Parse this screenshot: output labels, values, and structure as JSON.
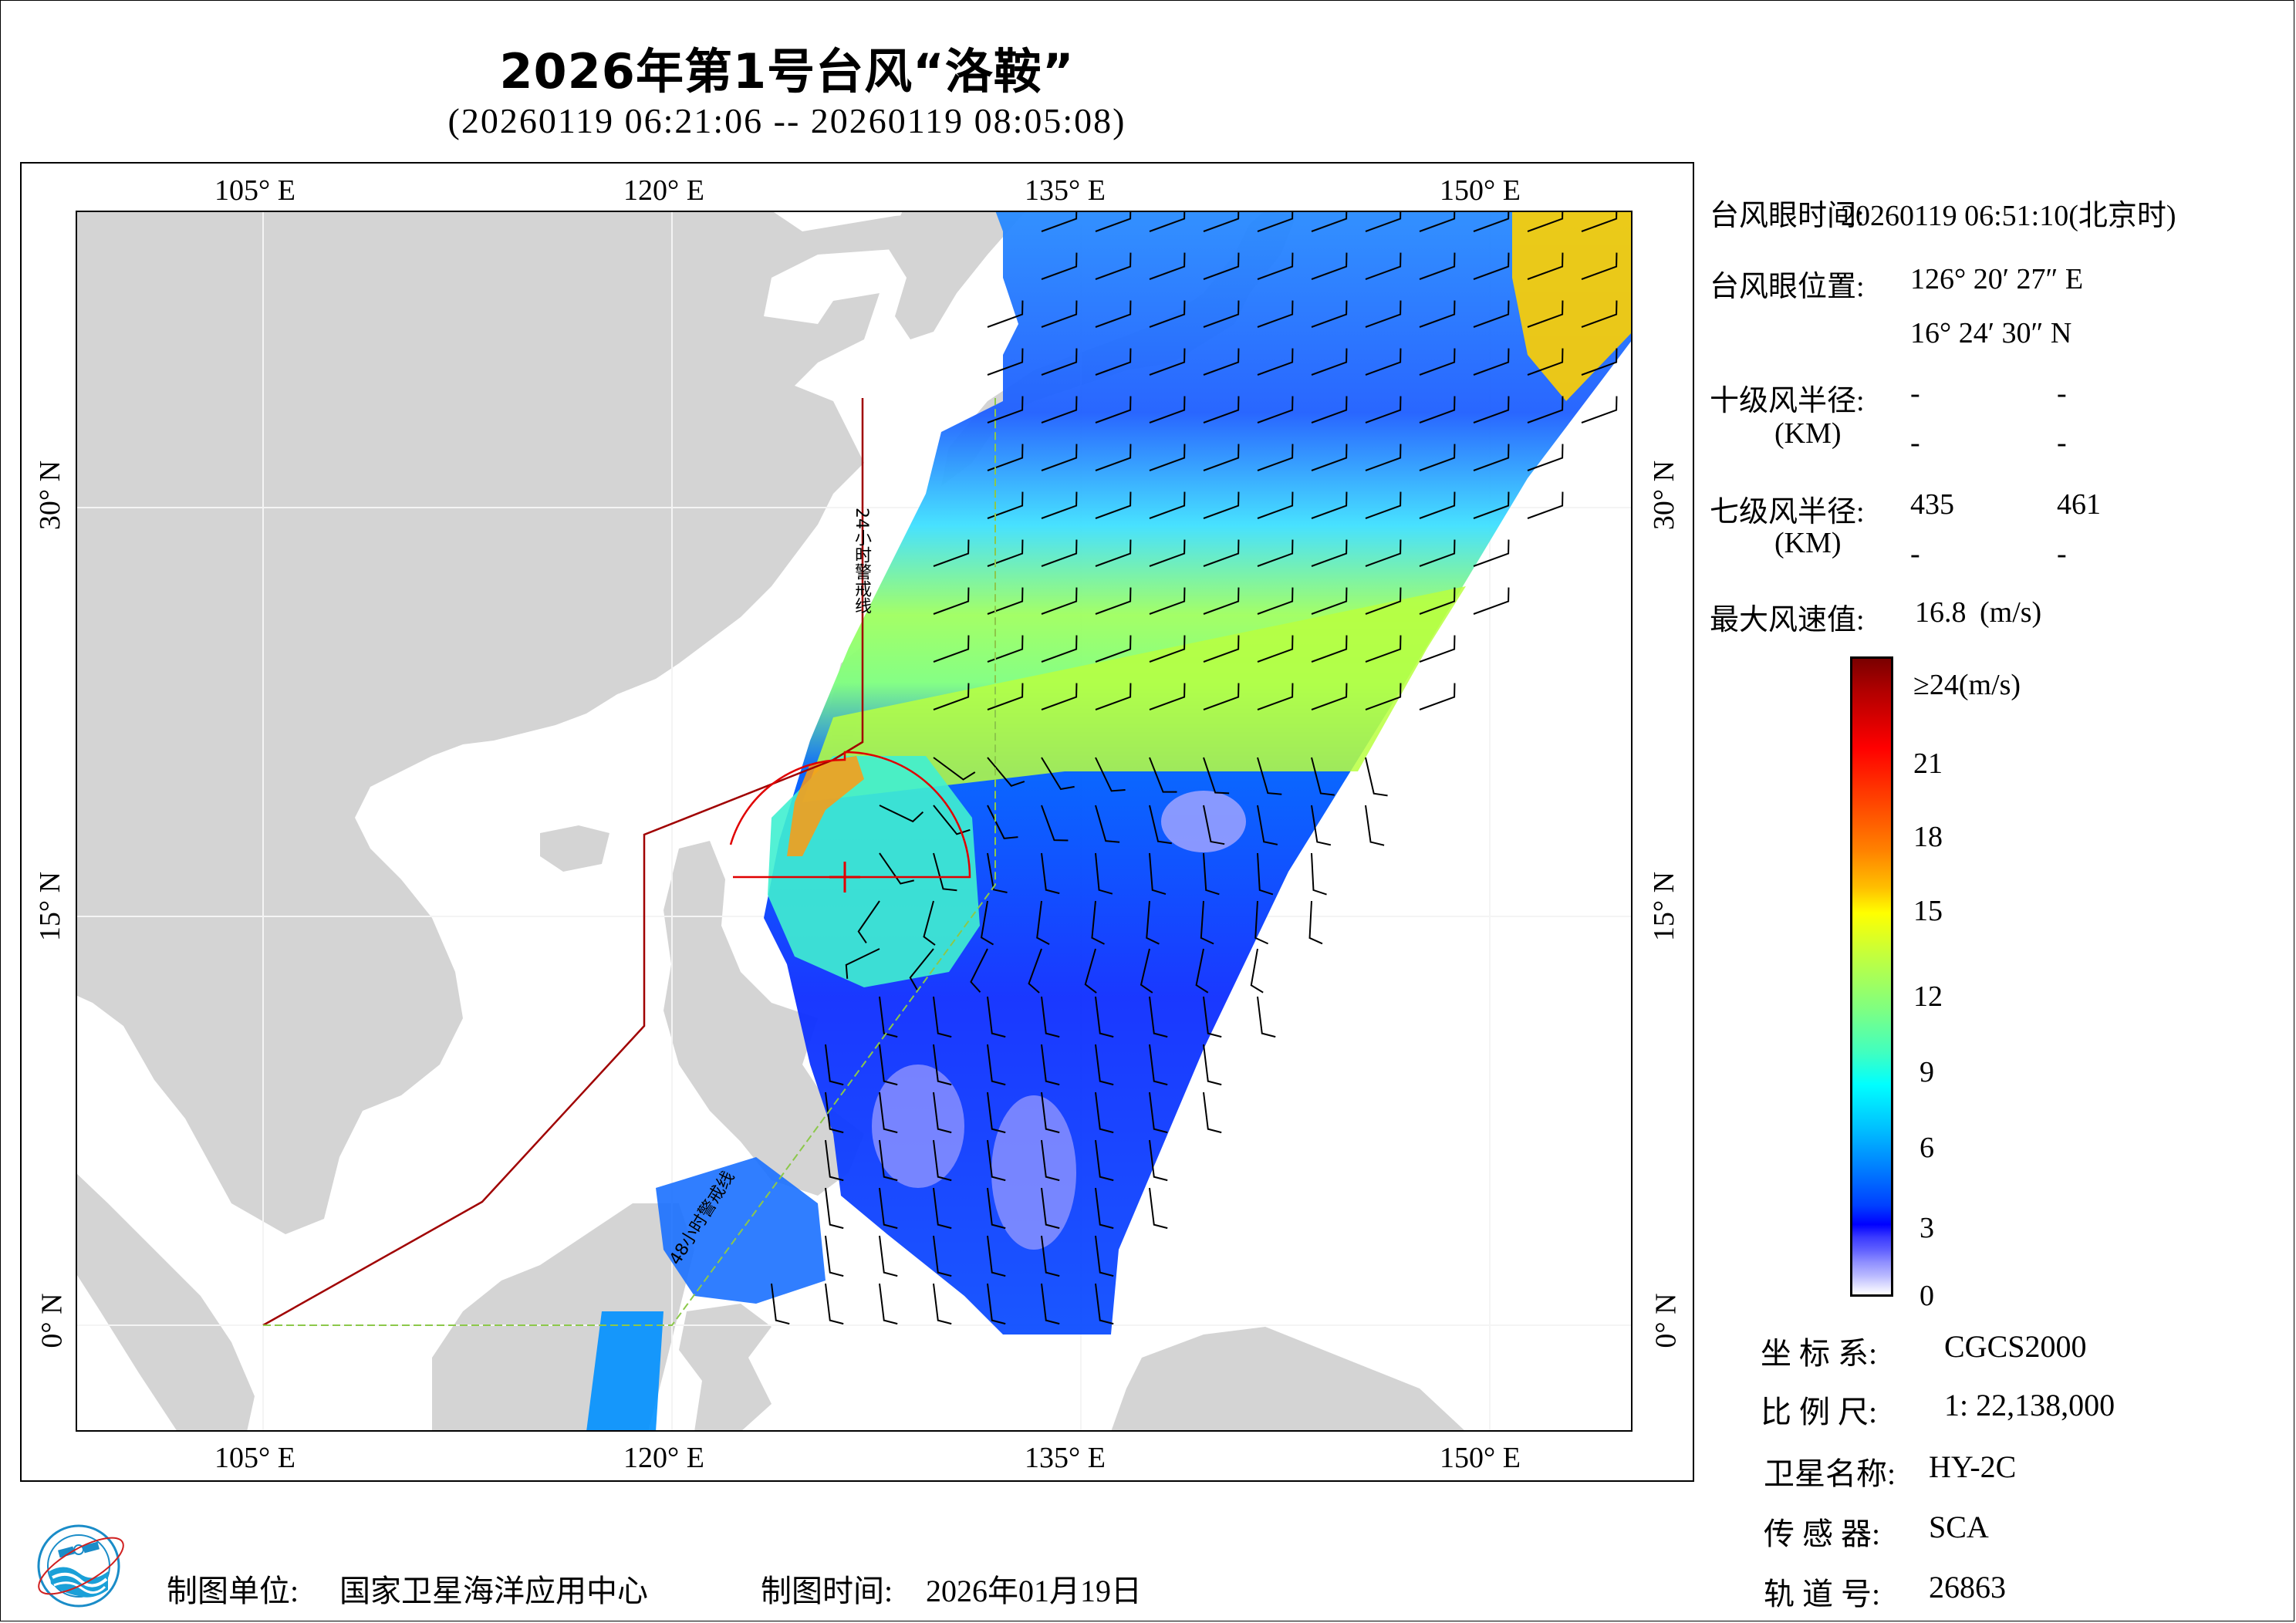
{
  "header": {
    "title": "2026年第1号台风“洛鞍”",
    "subtitle": "(20260119 06:21:06 -- 20260119 08:05:08)"
  },
  "map": {
    "top_lon_labels": [
      "105° E",
      "120° E",
      "135° E",
      "150° E"
    ],
    "bottom_lon_labels": [
      "105° E",
      "120° E",
      "135° E",
      "150° E"
    ],
    "left_lat_labels": [
      "30° N",
      "15° N",
      "0° N"
    ],
    "right_lat_labels": [
      "30° N",
      "15° N",
      "0° N"
    ],
    "warning_line_24h_label": "24小时警戒线",
    "warning_line_48h_label": "48小时警戒线",
    "colors": {
      "land": "#d4d4d4",
      "sea": "#ffffff",
      "warning_24h": "#a00000",
      "warning_48h": "#8cc84a",
      "wind_radius": "#e00000",
      "typhoon_center": "#e00000"
    }
  },
  "info": {
    "eye_time_label": "台风眼时间:",
    "eye_time_value": "20260119 06:51:10(北京时)",
    "eye_pos_label": "台风眼位置:",
    "eye_lon": "126° 20′ 27″ E",
    "eye_lat": "16° 24′ 30″ N",
    "r10_label": "十级风半径:",
    "r10_unit": "(KM)",
    "r10_values": [
      "-",
      "-",
      "-",
      "-"
    ],
    "r7_label": "七级风半径:",
    "r7_unit": "(KM)",
    "r7_values": [
      "435",
      "461",
      "-",
      "-"
    ],
    "max_wind_label": "最大风速值:",
    "max_wind_value": "16.8",
    "max_wind_unit": "(m/s)"
  },
  "colorbar": {
    "labels": [
      "≥24(m/s)",
      "21",
      "18",
      "15",
      "12",
      "9",
      "6",
      "3",
      "0"
    ],
    "min": 0,
    "max": 24,
    "unit": "m/s"
  },
  "meta": {
    "crs_label": "坐 标 系:",
    "crs_value": "CGCS2000",
    "scale_label": "比 例 尺:",
    "scale_value": "1: 22,138,000",
    "satellite_label": "卫星名称:",
    "satellite_value": "HY-2C",
    "sensor_label": "传 感 器:",
    "sensor_value": "SCA",
    "orbit_label": "轨 道 号:",
    "orbit_value": "26863"
  },
  "footer": {
    "producer_label": "制图单位:",
    "producer_value": "国家卫星海洋应用中心",
    "date_label": "制图时间:",
    "date_value": "2026年01月19日",
    "logo_icon": "nsoas-logo-icon"
  }
}
